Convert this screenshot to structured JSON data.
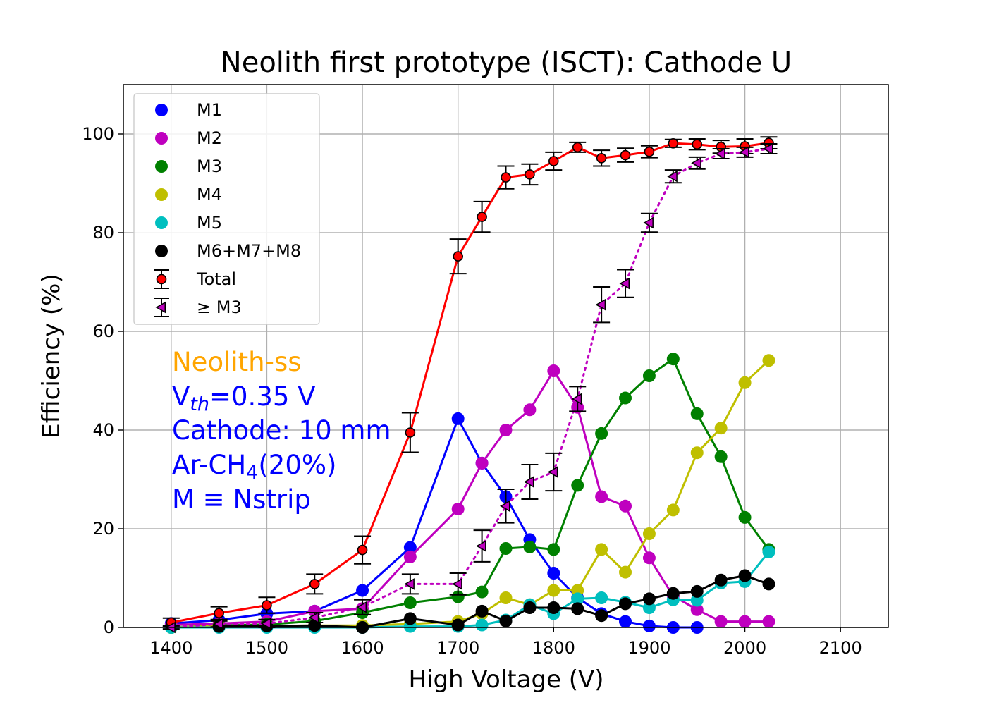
{
  "chart_data": {
    "type": "line",
    "title": "Neolith first prototype (ISCT): Cathode U",
    "xlabel": "High Voltage (V)",
    "ylabel": "Efficiency (%)",
    "xlim": [
      1350,
      2150
    ],
    "ylim": [
      0,
      110
    ],
    "xticks": [
      1400,
      1500,
      1600,
      1700,
      1800,
      1900,
      2000,
      2100
    ],
    "yticks": [
      0,
      20,
      40,
      60,
      80,
      100
    ],
    "grid": true,
    "legend_position": "top-left",
    "annotations": {
      "line1": "Neolith-ss",
      "line2_main": "V",
      "line2_sub": "th",
      "line2_rest": "=0.35 V",
      "line3": "Cathode: 10 mm",
      "line4_pre": "Ar-CH",
      "line4_sub": "4",
      "line4_post": "(20%)",
      "line5": "M ≡ Nstrip",
      "color_line1": "#ffa500",
      "color_rest": "#0000ff"
    },
    "series": [
      {
        "name": "M1",
        "color": "#0000ff",
        "line": "solid",
        "marker": "circle",
        "x": [
          1400,
          1450,
          1500,
          1550,
          1600,
          1650,
          1700,
          1725,
          1750,
          1775,
          1800,
          1825,
          1850,
          1875,
          1900,
          1925,
          1950
        ],
        "y": [
          0.8,
          1.5,
          2.8,
          3.3,
          7.5,
          16.2,
          42.3,
          33.3,
          26.5,
          17.8,
          11.0,
          6.0,
          2.8,
          1.2,
          0.3,
          0.0,
          0.0
        ]
      },
      {
        "name": "M2",
        "color": "#bf00bf",
        "line": "solid",
        "marker": "circle",
        "x": [
          1400,
          1450,
          1500,
          1550,
          1600,
          1650,
          1700,
          1725,
          1750,
          1775,
          1800,
          1825,
          1850,
          1875,
          1900,
          1925,
          1950,
          1975,
          2000,
          2025
        ],
        "y": [
          0.5,
          0.8,
          1.2,
          3.3,
          3.8,
          14.3,
          24.0,
          33.3,
          40.0,
          44.1,
          52.0,
          44.6,
          26.5,
          24.6,
          14.1,
          6.4,
          3.6,
          1.2,
          1.2,
          1.2
        ]
      },
      {
        "name": "M3",
        "color": "#008000",
        "line": "solid",
        "marker": "circle",
        "x": [
          1400,
          1450,
          1500,
          1550,
          1600,
          1650,
          1700,
          1725,
          1750,
          1775,
          1800,
          1825,
          1850,
          1875,
          1900,
          1925,
          1950,
          1975,
          2000,
          2025
        ],
        "y": [
          0.0,
          0.4,
          0.6,
          1.3,
          3.0,
          5.0,
          6.2,
          7.2,
          16.0,
          16.3,
          15.8,
          28.8,
          39.3,
          46.5,
          51.0,
          54.4,
          43.3,
          34.6,
          22.3,
          15.8
        ]
      },
      {
        "name": "M4",
        "color": "#bfbf00",
        "line": "solid",
        "marker": "circle",
        "x": [
          1400,
          1450,
          1500,
          1550,
          1600,
          1650,
          1700,
          1725,
          1750,
          1775,
          1800,
          1825,
          1850,
          1875,
          1900,
          1925,
          1950,
          1975,
          2000,
          2025
        ],
        "y": [
          0.0,
          0.3,
          0.3,
          0.4,
          0.4,
          0.7,
          1.2,
          2.8,
          6.0,
          4.6,
          7.5,
          7.5,
          15.8,
          11.2,
          19.0,
          23.8,
          35.4,
          40.4,
          49.6,
          54.1
        ]
      },
      {
        "name": "M5",
        "color": "#00bfbf",
        "line": "solid",
        "marker": "circle",
        "x": [
          1400,
          1450,
          1500,
          1550,
          1600,
          1650,
          1700,
          1725,
          1750,
          1775,
          1800,
          1825,
          1850,
          1875,
          1900,
          1925,
          1950,
          1975,
          2000,
          2025
        ],
        "y": [
          0.0,
          0.0,
          0.0,
          0.0,
          0.0,
          0.2,
          0.2,
          0.5,
          1.5,
          4.6,
          2.8,
          5.8,
          6.0,
          5.1,
          4.0,
          5.6,
          5.5,
          9.0,
          9.3,
          15.3
        ]
      },
      {
        "name": "M6+M7+M8",
        "color": "#000000",
        "line": "solid",
        "marker": "circle",
        "x": [
          1450,
          1500,
          1550,
          1600,
          1650,
          1700,
          1725,
          1750,
          1775,
          1800,
          1825,
          1850,
          1875,
          1900,
          1925,
          1950,
          1975,
          2000,
          2025
        ],
        "y": [
          0.2,
          0.3,
          0.4,
          0.0,
          1.8,
          0.5,
          3.3,
          1.3,
          4.0,
          4.0,
          3.8,
          2.4,
          4.8,
          5.8,
          6.9,
          7.3,
          9.6,
          10.5,
          8.8
        ]
      },
      {
        "name": "Total",
        "color": "#ff0000",
        "line": "solid",
        "marker": "circle-errorbar",
        "edgecolor": "#000000",
        "x": [
          1400,
          1450,
          1500,
          1550,
          1600,
          1650,
          1700,
          1725,
          1750,
          1775,
          1800,
          1825,
          1850,
          1875,
          1900,
          1925,
          1950,
          1975,
          2000,
          2025
        ],
        "y": [
          1.0,
          2.9,
          4.5,
          8.8,
          15.7,
          39.5,
          75.2,
          83.2,
          91.2,
          91.8,
          94.5,
          97.3,
          95.1,
          95.7,
          96.4,
          98.1,
          97.9,
          97.4,
          97.5,
          98.2
        ],
        "yerr": [
          0.9,
          1.3,
          1.6,
          2.0,
          2.8,
          4.0,
          3.5,
          3.1,
          2.3,
          2.1,
          1.8,
          1.0,
          1.6,
          1.4,
          1.2,
          0.8,
          1.1,
          1.3,
          1.5,
          1.2
        ]
      },
      {
        "name": "≥ M3",
        "color": "#bf00bf",
        "line": "dotted",
        "marker": "triangle-left-errorbar",
        "edgecolor": "#000000",
        "x": [
          1400,
          1450,
          1500,
          1550,
          1600,
          1650,
          1700,
          1725,
          1750,
          1775,
          1800,
          1825,
          1850,
          1875,
          1900,
          1925,
          1950,
          1975,
          2000,
          2025
        ],
        "y": [
          0.0,
          0.7,
          0.8,
          2.0,
          4.1,
          8.8,
          8.8,
          16.5,
          24.6,
          29.5,
          31.5,
          46.3,
          65.4,
          69.7,
          82.0,
          91.4,
          94.1,
          96.0,
          96.3,
          97.0
        ],
        "yerr": [
          0.3,
          0.6,
          0.8,
          1.0,
          1.5,
          2.0,
          2.2,
          3.2,
          3.4,
          3.5,
          3.8,
          2.5,
          3.6,
          2.8,
          1.9,
          1.3,
          1.2,
          1.0,
          1.0,
          1.0
        ]
      }
    ]
  }
}
